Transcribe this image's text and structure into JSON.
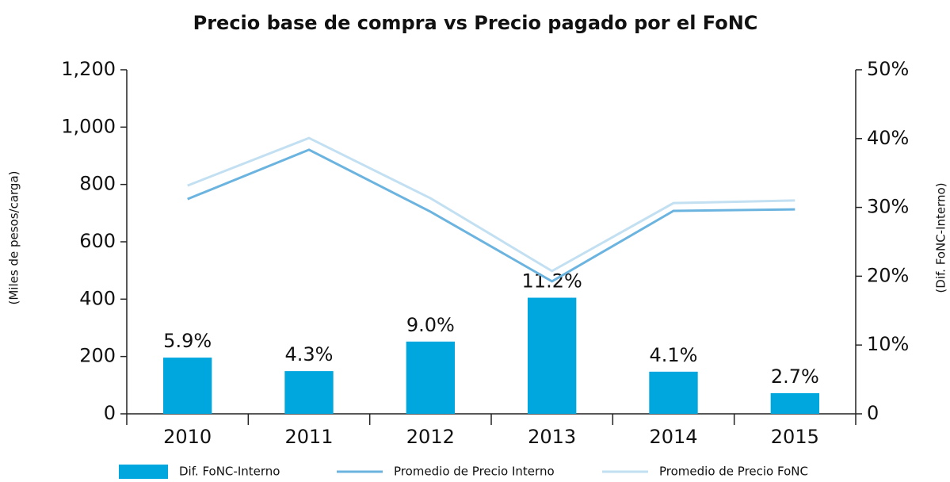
{
  "chart_data": {
    "type": "bar_line",
    "title": "Precio base de compra vs Precio pagado por el FoNC",
    "ylabel": "(Miles de pesos/carga)",
    "y2label": "(Dif. FoNC-Interno)",
    "categories": [
      "2010",
      "2011",
      "2012",
      "2013",
      "2014",
      "2015"
    ],
    "ylim": [
      0,
      1200
    ],
    "yticks": [
      0,
      200,
      400,
      600,
      800,
      {
        "value": 1000,
        "label": "1,000"
      },
      {
        "value": 1200,
        "label": "1,200"
      }
    ],
    "y2lim": [
      0,
      50
    ],
    "y2ticks": [
      0,
      {
        "value": 10,
        "label": "10%"
      },
      {
        "value": 20,
        "label": "20%"
      },
      {
        "value": 30,
        "label": "30%"
      },
      {
        "value": 40,
        "label": "40%"
      },
      {
        "value": 50,
        "label": "50%"
      }
    ],
    "grid": false,
    "legend": "bottom",
    "series": [
      {
        "name": "Dif. FoNC-Interno",
        "kind": "bar",
        "color": "#00a6de",
        "values": [
          196,
          149,
          252,
          405,
          147,
          72
        ],
        "labels": [
          "5.9%",
          "4.3%",
          "9.0%",
          "11.2%",
          "4.1%",
          "2.7%"
        ]
      },
      {
        "name": "Promedio de Precio Interno",
        "kind": "line",
        "color": "#6cb4e0",
        "values": [
          749,
          921,
          705,
          462,
          708,
          713
        ]
      },
      {
        "name": "Promedio de Precio FoNC",
        "kind": "line",
        "color": "#c2e0f2",
        "values": [
          796,
          962,
          752,
          498,
          735,
          744
        ]
      }
    ]
  }
}
